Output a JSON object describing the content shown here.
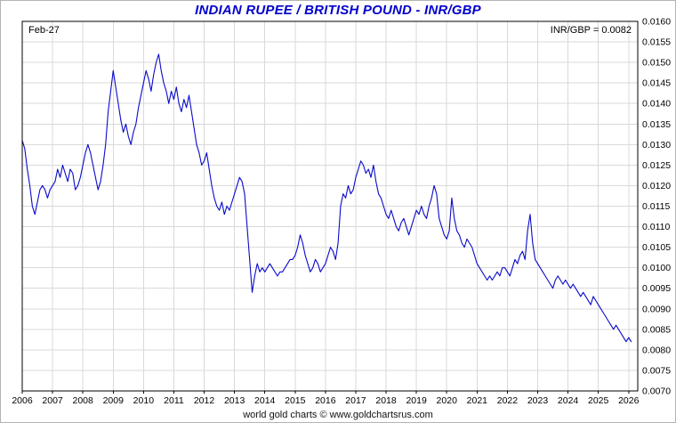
{
  "header": {
    "title": "INDIAN RUPEE / BRITISH POUND - INR/GBP"
  },
  "footer": {
    "caption": "world gold charts © www.goldchartsrus.com"
  },
  "chart_data": {
    "type": "line",
    "title": "INDIAN RUPEE / BRITISH POUND - INR/GBP",
    "date_label": "Feb-27",
    "value_label": "INR/GBP = 0.0082",
    "last_value": 0.0082,
    "series_name": "INR/GBP",
    "x_start": 2006.0,
    "points_per_year": 12,
    "xlim": [
      2006,
      2026.3
    ],
    "ylim": [
      0.007,
      0.016
    ],
    "ytick_step": 0.0005,
    "xticks": [
      2006,
      2007,
      2008,
      2009,
      2010,
      2011,
      2012,
      2013,
      2014,
      2015,
      2016,
      2017,
      2018,
      2019,
      2020,
      2021,
      2022,
      2023,
      2024,
      2025,
      2026
    ],
    "grid": true,
    "legend_position": "none",
    "line_color": "#0a0acc",
    "grid_color": "#d9d9d9",
    "axis_color": "#000000",
    "values": [
      0.0131,
      0.0129,
      0.0124,
      0.012,
      0.0115,
      0.0113,
      0.0116,
      0.0119,
      0.012,
      0.0119,
      0.0117,
      0.0119,
      0.012,
      0.0121,
      0.0124,
      0.0122,
      0.0125,
      0.0123,
      0.0121,
      0.0124,
      0.0123,
      0.0119,
      0.012,
      0.0122,
      0.0125,
      0.0128,
      0.013,
      0.0128,
      0.0125,
      0.0122,
      0.0119,
      0.0121,
      0.0125,
      0.013,
      0.0138,
      0.0143,
      0.0148,
      0.0144,
      0.014,
      0.0136,
      0.0133,
      0.0135,
      0.0132,
      0.013,
      0.0133,
      0.0135,
      0.0139,
      0.0142,
      0.0145,
      0.0148,
      0.0146,
      0.0143,
      0.0147,
      0.015,
      0.0152,
      0.0148,
      0.0145,
      0.0143,
      0.014,
      0.0143,
      0.0141,
      0.0144,
      0.014,
      0.0138,
      0.0141,
      0.0139,
      0.0142,
      0.0138,
      0.0134,
      0.013,
      0.0128,
      0.0125,
      0.0126,
      0.0128,
      0.0124,
      0.012,
      0.0117,
      0.0115,
      0.0114,
      0.0116,
      0.0113,
      0.0115,
      0.0114,
      0.0116,
      0.0118,
      0.012,
      0.0122,
      0.0121,
      0.0118,
      0.011,
      0.0102,
      0.0094,
      0.0098,
      0.0101,
      0.0099,
      0.01,
      0.0099,
      0.01,
      0.0101,
      0.01,
      0.0099,
      0.0098,
      0.0099,
      0.0099,
      0.01,
      0.0101,
      0.0102,
      0.0102,
      0.0103,
      0.0105,
      0.0108,
      0.0106,
      0.0103,
      0.0101,
      0.0099,
      0.01,
      0.0102,
      0.0101,
      0.0099,
      0.01,
      0.0101,
      0.0103,
      0.0105,
      0.0104,
      0.0102,
      0.0106,
      0.0115,
      0.0118,
      0.0117,
      0.012,
      0.0118,
      0.0119,
      0.0122,
      0.0124,
      0.0126,
      0.0125,
      0.0123,
      0.0124,
      0.0122,
      0.0125,
      0.0121,
      0.0118,
      0.0117,
      0.0115,
      0.0113,
      0.0112,
      0.0114,
      0.0112,
      0.011,
      0.0109,
      0.0111,
      0.0112,
      0.011,
      0.0108,
      0.011,
      0.0112,
      0.0114,
      0.0113,
      0.0115,
      0.0113,
      0.0112,
      0.0115,
      0.0117,
      0.012,
      0.0118,
      0.0112,
      0.011,
      0.0108,
      0.0107,
      0.0109,
      0.0117,
      0.0112,
      0.0109,
      0.0108,
      0.0106,
      0.0105,
      0.0107,
      0.0106,
      0.0105,
      0.0103,
      0.0101,
      0.01,
      0.0099,
      0.0098,
      0.0097,
      0.0098,
      0.0097,
      0.0098,
      0.0099,
      0.0098,
      0.01,
      0.01,
      0.0099,
      0.0098,
      0.01,
      0.0102,
      0.0101,
      0.0103,
      0.0104,
      0.0102,
      0.0109,
      0.0113,
      0.0106,
      0.0102,
      0.0101,
      0.01,
      0.0099,
      0.0098,
      0.0097,
      0.0096,
      0.0095,
      0.0097,
      0.0098,
      0.0097,
      0.0096,
      0.0097,
      0.0096,
      0.0095,
      0.0096,
      0.0095,
      0.0094,
      0.0093,
      0.0094,
      0.0093,
      0.0092,
      0.0091,
      0.0093,
      0.0092,
      0.0091,
      0.009,
      0.0089,
      0.0088,
      0.0087,
      0.0086,
      0.0085,
      0.0086,
      0.0085,
      0.0084,
      0.0083,
      0.0082,
      0.0083,
      0.0082
    ]
  }
}
